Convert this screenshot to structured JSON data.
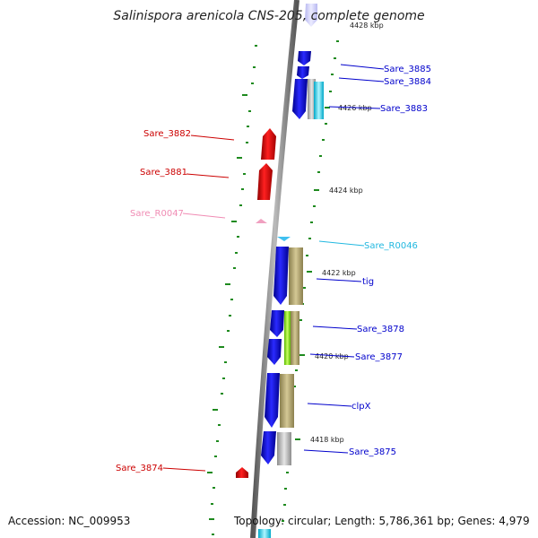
{
  "title": "Salinispora arenicola CNS-205, complete genome",
  "footer": {
    "accession": "Accession: NC_009953",
    "summary": "Topology: circular; Length: 5,786,361 bp; Genes: 4,979"
  },
  "kbp_labels": [
    "4428 kbp",
    "4426 kbp",
    "4424 kbp",
    "4422 kbp",
    "4420 kbp",
    "4418 kbp"
  ],
  "genes": [
    {
      "name": "Sare_3885",
      "color": "#0000cc"
    },
    {
      "name": "Sare_3884",
      "color": "#0000cc"
    },
    {
      "name": "Sare_3883",
      "color": "#0000cc"
    },
    {
      "name": "Sare_3882",
      "color": "#cc0000"
    },
    {
      "name": "Sare_3881",
      "color": "#cc0000"
    },
    {
      "name": "Sare_R0047",
      "color": "#f08cb4"
    },
    {
      "name": "Sare_R0046",
      "color": "#22b8e0"
    },
    {
      "name": "tig",
      "color": "#0000cc"
    },
    {
      "name": "Sare_3878",
      "color": "#0000cc"
    },
    {
      "name": "Sare_3877",
      "color": "#0000cc"
    },
    {
      "name": "clpX",
      "color": "#0000cc"
    },
    {
      "name": "Sare_3875",
      "color": "#0000cc"
    },
    {
      "name": "Sare_3874",
      "color": "#cc0000"
    }
  ]
}
